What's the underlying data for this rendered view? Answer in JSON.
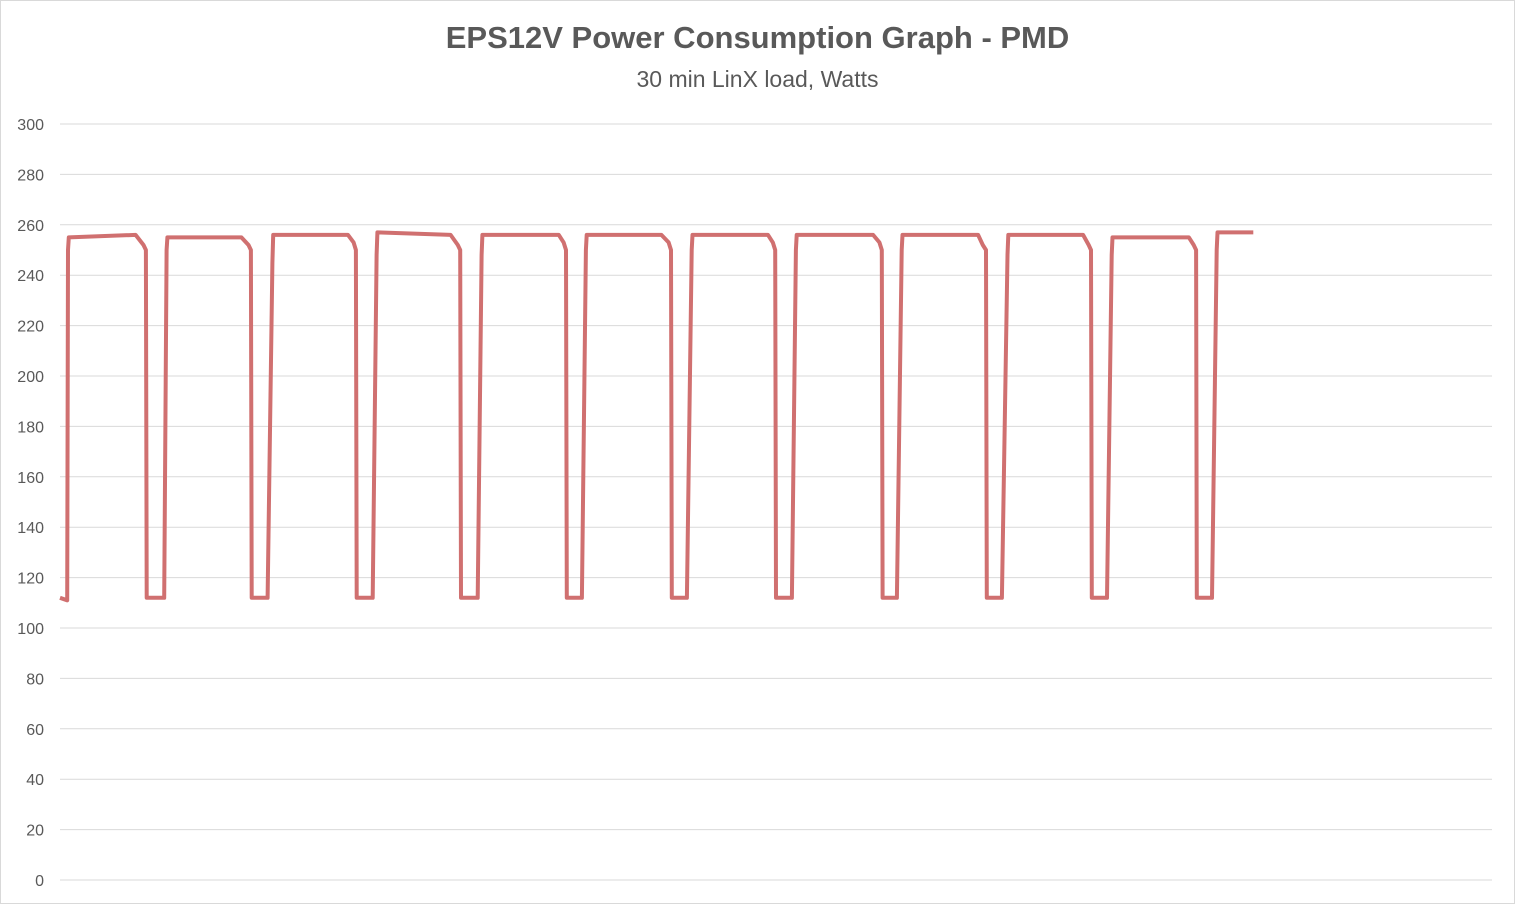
{
  "chart_data": {
    "type": "line",
    "title": "EPS12V Power Consumption Graph - PMD",
    "subtitle": "30 min LinX load, Watts",
    "xlabel": "",
    "ylabel": "",
    "ylim": [
      0,
      300
    ],
    "yticks": [
      "0",
      "20",
      "40",
      "60",
      "80",
      "100",
      "120",
      "140",
      "160",
      "180",
      "200",
      "220",
      "240",
      "260",
      "280",
      "300"
    ],
    "grid": true,
    "legend": "none",
    "x_axis_labels": "none",
    "xlim": [
      0,
      1800
    ],
    "line_color": "#d07070",
    "series": [
      {
        "points": [
          [
            0,
            112
          ],
          [
            9,
            111
          ],
          [
            10,
            250
          ],
          [
            11,
            255
          ],
          [
            95,
            256
          ],
          [
            105,
            252
          ],
          [
            108,
            250
          ],
          [
            109,
            112
          ],
          [
            131,
            112
          ],
          [
            134,
            250
          ],
          [
            135,
            255
          ],
          [
            228,
            255
          ],
          [
            237,
            252
          ],
          [
            240,
            250
          ],
          [
            241,
            112
          ],
          [
            261,
            112
          ],
          [
            267,
            245
          ],
          [
            268,
            256
          ],
          [
            362,
            256
          ],
          [
            369,
            253
          ],
          [
            372,
            250
          ],
          [
            373,
            112
          ],
          [
            393,
            112
          ],
          [
            398,
            248
          ],
          [
            399,
            257
          ],
          [
            491,
            256
          ],
          [
            500,
            252
          ],
          [
            503,
            250
          ],
          [
            504,
            112
          ],
          [
            525,
            112
          ],
          [
            530,
            248
          ],
          [
            531,
            256
          ],
          [
            627,
            256
          ],
          [
            633,
            253
          ],
          [
            636,
            250
          ],
          [
            637,
            112
          ],
          [
            656,
            112
          ],
          [
            661,
            250
          ],
          [
            662,
            256
          ],
          [
            756,
            256
          ],
          [
            765,
            253
          ],
          [
            768,
            250
          ],
          [
            769,
            112
          ],
          [
            788,
            112
          ],
          [
            794,
            250
          ],
          [
            795,
            256
          ],
          [
            890,
            256
          ],
          [
            896,
            253
          ],
          [
            899,
            250
          ],
          [
            900,
            112
          ],
          [
            920,
            112
          ],
          [
            925,
            250
          ],
          [
            926,
            256
          ],
          [
            1022,
            256
          ],
          [
            1030,
            253
          ],
          [
            1033,
            250
          ],
          [
            1034,
            112
          ],
          [
            1052,
            112
          ],
          [
            1058,
            250
          ],
          [
            1059,
            256
          ],
          [
            1154,
            256
          ],
          [
            1160,
            252
          ],
          [
            1164,
            250
          ],
          [
            1165,
            112
          ],
          [
            1184,
            112
          ],
          [
            1191,
            248
          ],
          [
            1192,
            256
          ],
          [
            1286,
            256
          ],
          [
            1293,
            252
          ],
          [
            1296,
            250
          ],
          [
            1297,
            112
          ],
          [
            1316,
            112
          ],
          [
            1322,
            248
          ],
          [
            1323,
            255
          ],
          [
            1419,
            255
          ],
          [
            1425,
            252
          ],
          [
            1428,
            250
          ],
          [
            1429,
            112
          ],
          [
            1448,
            112
          ],
          [
            1454,
            250
          ],
          [
            1455,
            257
          ],
          [
            1500,
            257
          ]
        ]
      }
    ]
  }
}
